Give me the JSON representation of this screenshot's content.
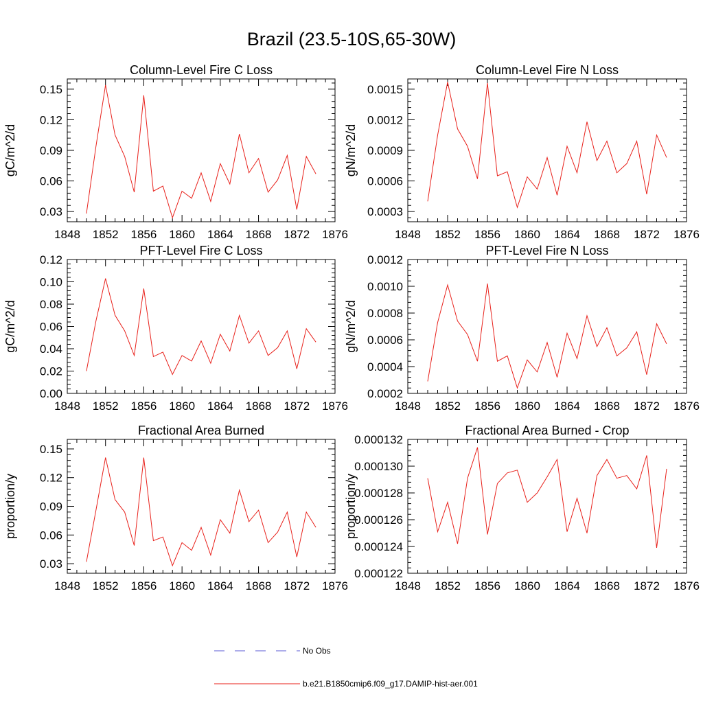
{
  "figure": {
    "title": "Brazil (23.5-10S,65-30W)"
  },
  "legend": {
    "entries": [
      {
        "label": "No Obs",
        "color": "#5b5bd6",
        "dash": "dashed"
      },
      {
        "label": "b.e21.B1850cmip6.f09_g17.DAMIP-hist-aer.001",
        "color": "#e8201a",
        "dash": "solid"
      }
    ]
  },
  "chart_data": [
    {
      "type": "line",
      "title": "Column-Level Fire C Loss",
      "ylabel": "gC/m^2/d",
      "xlim": [
        1848,
        1876
      ],
      "ylim": [
        0.02,
        0.16
      ],
      "xticks": [
        1848,
        1852,
        1856,
        1860,
        1864,
        1868,
        1872,
        1876
      ],
      "xtick_labels": [
        "1848",
        "1852",
        "1856",
        "1860",
        "1864",
        "1868",
        "1872",
        "1876"
      ],
      "yticks": [
        0.03,
        0.06,
        0.09,
        0.12,
        0.15
      ],
      "ytick_labels": [
        "0.03",
        "0.06",
        "0.09",
        "0.12",
        "0.15"
      ],
      "series": [
        {
          "color": "#e8201a",
          "x": [
            1850,
            1851,
            1852,
            1853,
            1854,
            1855,
            1856,
            1857,
            1858,
            1859,
            1860,
            1861,
            1862,
            1863,
            1864,
            1865,
            1866,
            1867,
            1868,
            1869,
            1870,
            1871,
            1872,
            1873,
            1874
          ],
          "y": [
            0.028,
            0.094,
            0.154,
            0.105,
            0.084,
            0.049,
            0.144,
            0.05,
            0.055,
            0.024,
            0.05,
            0.043,
            0.068,
            0.04,
            0.077,
            0.057,
            0.106,
            0.068,
            0.082,
            0.049,
            0.061,
            0.085,
            0.032,
            0.084,
            0.067
          ]
        }
      ]
    },
    {
      "type": "line",
      "title": "Column-Level Fire N Loss",
      "ylabel": "gN/m^2/d",
      "xlim": [
        1848,
        1876
      ],
      "ylim": [
        0.0002,
        0.0016
      ],
      "xticks": [
        1848,
        1852,
        1856,
        1860,
        1864,
        1868,
        1872,
        1876
      ],
      "xtick_labels": [
        "1848",
        "1852",
        "1856",
        "1860",
        "1864",
        "1868",
        "1872",
        "1876"
      ],
      "yticks": [
        0.0003,
        0.0006,
        0.0009,
        0.0012,
        0.0015
      ],
      "ytick_labels": [
        "0.0003",
        "0.0006",
        "0.0009",
        "0.0012",
        "0.0015"
      ],
      "series": [
        {
          "color": "#e8201a",
          "x": [
            1850,
            1851,
            1852,
            1853,
            1854,
            1855,
            1856,
            1857,
            1858,
            1859,
            1860,
            1861,
            1862,
            1863,
            1864,
            1865,
            1866,
            1867,
            1868,
            1869,
            1870,
            1871,
            1872,
            1873,
            1874
          ],
          "y": [
            0.0004,
            0.00105,
            0.00157,
            0.00111,
            0.00094,
            0.00062,
            0.00156,
            0.00065,
            0.00069,
            0.00034,
            0.00064,
            0.00052,
            0.00083,
            0.00046,
            0.00094,
            0.00068,
            0.00118,
            0.0008,
            0.00099,
            0.00068,
            0.00077,
            0.00099,
            0.00047,
            0.00105,
            0.00083
          ]
        }
      ]
    },
    {
      "type": "line",
      "title": "PFT-Level Fire C Loss",
      "ylabel": "gC/m^2/d",
      "xlim": [
        1848,
        1876
      ],
      "ylim": [
        0.0,
        0.12
      ],
      "xticks": [
        1848,
        1852,
        1856,
        1860,
        1864,
        1868,
        1872,
        1876
      ],
      "xtick_labels": [
        "1848",
        "1852",
        "1856",
        "1860",
        "1864",
        "1868",
        "1872",
        "1876"
      ],
      "yticks": [
        0.0,
        0.02,
        0.04,
        0.06,
        0.08,
        0.1,
        0.12
      ],
      "ytick_labels": [
        "0.00",
        "0.02",
        "0.04",
        "0.06",
        "0.08",
        "0.10",
        "0.12"
      ],
      "series": [
        {
          "color": "#e8201a",
          "x": [
            1850,
            1851,
            1852,
            1853,
            1854,
            1855,
            1856,
            1857,
            1858,
            1859,
            1860,
            1861,
            1862,
            1863,
            1864,
            1865,
            1866,
            1867,
            1868,
            1869,
            1870,
            1871,
            1872,
            1873,
            1874
          ],
          "y": [
            0.02,
            0.065,
            0.103,
            0.07,
            0.056,
            0.034,
            0.094,
            0.033,
            0.037,
            0.017,
            0.034,
            0.029,
            0.047,
            0.027,
            0.053,
            0.038,
            0.07,
            0.045,
            0.056,
            0.034,
            0.041,
            0.056,
            0.022,
            0.058,
            0.046
          ]
        }
      ]
    },
    {
      "type": "line",
      "title": "PFT-Level Fire N Loss",
      "ylabel": "gN/m^2/d",
      "xlim": [
        1848,
        1876
      ],
      "ylim": [
        0.0002,
        0.0012
      ],
      "xticks": [
        1848,
        1852,
        1856,
        1860,
        1864,
        1868,
        1872,
        1876
      ],
      "xtick_labels": [
        "1848",
        "1852",
        "1856",
        "1860",
        "1864",
        "1868",
        "1872",
        "1876"
      ],
      "yticks": [
        0.0002,
        0.0004,
        0.0006,
        0.0008,
        0.001,
        0.0012
      ],
      "ytick_labels": [
        "0.0002",
        "0.0004",
        "0.0006",
        "0.0008",
        "0.0010",
        "0.0012"
      ],
      "series": [
        {
          "color": "#e8201a",
          "x": [
            1850,
            1851,
            1852,
            1853,
            1854,
            1855,
            1856,
            1857,
            1858,
            1859,
            1860,
            1861,
            1862,
            1863,
            1864,
            1865,
            1866,
            1867,
            1868,
            1869,
            1870,
            1871,
            1872,
            1873,
            1874
          ],
          "y": [
            0.00029,
            0.00073,
            0.00101,
            0.00074,
            0.00064,
            0.00044,
            0.00102,
            0.00044,
            0.00048,
            0.00024,
            0.00045,
            0.00036,
            0.00058,
            0.00032,
            0.00065,
            0.00046,
            0.00078,
            0.00055,
            0.00069,
            0.00048,
            0.00054,
            0.00066,
            0.00034,
            0.00072,
            0.00057
          ]
        }
      ]
    },
    {
      "type": "line",
      "title": "Fractional Area Burned",
      "ylabel": "proportion/y",
      "xlim": [
        1848,
        1876
      ],
      "ylim": [
        0.02,
        0.16
      ],
      "xticks": [
        1848,
        1852,
        1856,
        1860,
        1864,
        1868,
        1872,
        1876
      ],
      "xtick_labels": [
        "1848",
        "1852",
        "1856",
        "1860",
        "1864",
        "1868",
        "1872",
        "1876"
      ],
      "yticks": [
        0.03,
        0.06,
        0.09,
        0.12,
        0.15
      ],
      "ytick_labels": [
        "0.03",
        "0.06",
        "0.09",
        "0.12",
        "0.15"
      ],
      "series": [
        {
          "color": "#e8201a",
          "x": [
            1850,
            1851,
            1852,
            1853,
            1854,
            1855,
            1856,
            1857,
            1858,
            1859,
            1860,
            1861,
            1862,
            1863,
            1864,
            1865,
            1866,
            1867,
            1868,
            1869,
            1870,
            1871,
            1872,
            1873,
            1874
          ],
          "y": [
            0.032,
            0.086,
            0.141,
            0.097,
            0.084,
            0.049,
            0.141,
            0.054,
            0.058,
            0.028,
            0.052,
            0.044,
            0.068,
            0.039,
            0.076,
            0.062,
            0.107,
            0.074,
            0.086,
            0.052,
            0.063,
            0.084,
            0.037,
            0.084,
            0.068
          ]
        }
      ]
    },
    {
      "type": "line",
      "title": "Fractional Area Burned - Crop",
      "ylabel": "proportion/y",
      "xlim": [
        1848,
        1876
      ],
      "ylim": [
        0.000122,
        0.000132
      ],
      "xticks": [
        1848,
        1852,
        1856,
        1860,
        1864,
        1868,
        1872,
        1876
      ],
      "xtick_labels": [
        "1848",
        "1852",
        "1856",
        "1860",
        "1864",
        "1868",
        "1872",
        "1876"
      ],
      "yticks": [
        0.000122,
        0.000124,
        0.000126,
        0.000128,
        0.00013,
        0.000132
      ],
      "ytick_labels": [
        "0.000122",
        "0.000124",
        "0.000126",
        "0.000128",
        "0.000130",
        "0.000132"
      ],
      "series": [
        {
          "color": "#e8201a",
          "x": [
            1850,
            1851,
            1852,
            1853,
            1854,
            1855,
            1856,
            1857,
            1858,
            1859,
            1860,
            1861,
            1862,
            1863,
            1864,
            1865,
            1866,
            1867,
            1868,
            1869,
            1870,
            1871,
            1872,
            1873,
            1874
          ],
          "y": [
            0.0001291,
            0.0001251,
            0.0001273,
            0.0001242,
            0.0001291,
            0.0001314,
            0.0001249,
            0.0001287,
            0.0001295,
            0.0001297,
            0.0001273,
            0.000128,
            0.0001292,
            0.0001305,
            0.0001251,
            0.0001276,
            0.000125,
            0.0001293,
            0.0001305,
            0.0001291,
            0.0001293,
            0.0001283,
            0.0001308,
            0.0001239,
            0.0001298
          ]
        }
      ]
    }
  ]
}
